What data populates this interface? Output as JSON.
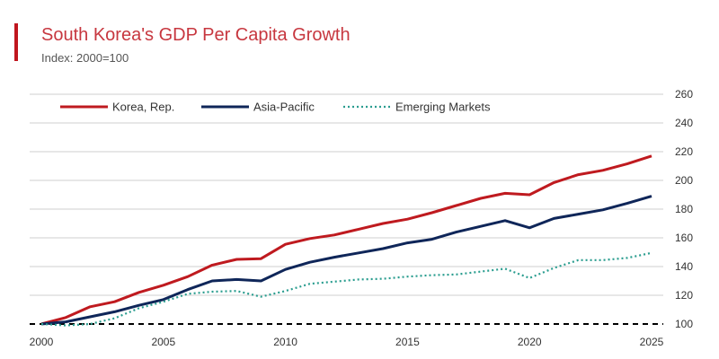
{
  "chart_data": {
    "type": "line",
    "title": "South Korea's GDP Per Capita Growth",
    "subtitle": "Index: 2000=100",
    "xlabel": "",
    "ylabel": "",
    "xlim": [
      2000,
      2025
    ],
    "ylim": [
      100,
      260
    ],
    "x_ticks": [
      "2000",
      "2005",
      "2010",
      "2015",
      "2020",
      "2025"
    ],
    "y_ticks": [
      "100",
      "120",
      "140",
      "160",
      "180",
      "200",
      "220",
      "240",
      "260"
    ],
    "grid": "horizontal",
    "y_axis_side": "right",
    "legend_position": "top-left",
    "baseline": {
      "value": 100,
      "style": "dashed",
      "color": "#000000"
    },
    "x": [
      2000,
      2001,
      2002,
      2003,
      2004,
      2005,
      2006,
      2007,
      2008,
      2009,
      2010,
      2011,
      2012,
      2013,
      2014,
      2015,
      2016,
      2017,
      2018,
      2019,
      2020,
      2021,
      2022,
      2023,
      2024,
      2025
    ],
    "series": [
      {
        "name": "Korea, Rep.",
        "color": "#bf1a1f",
        "style": "solid",
        "values": [
          100,
          104.5,
          112,
          115.5,
          122,
          127,
          133,
          141,
          145,
          145.5,
          155.5,
          159.5,
          162,
          166,
          170,
          173,
          177.5,
          182.5,
          187.5,
          191,
          190,
          198.5,
          204,
          207,
          211.5,
          217
        ]
      },
      {
        "name": "Asia-Pacific",
        "color": "#0f2659",
        "style": "solid",
        "values": [
          100,
          101.5,
          105,
          108.5,
          113,
          117,
          124,
          130,
          131,
          130,
          138,
          143,
          146.5,
          149.5,
          152.5,
          156.5,
          159,
          164,
          168,
          172,
          167,
          173.5,
          176.5,
          179.5,
          184,
          189
        ]
      },
      {
        "name": "Emerging Markets",
        "color": "#2a9d8f",
        "style": "dotted",
        "values": [
          100,
          99,
          100,
          104,
          111,
          115.5,
          121,
          122.5,
          123,
          119,
          123,
          128,
          129.5,
          131,
          131.5,
          133,
          134,
          134.5,
          136.5,
          138.5,
          132,
          139,
          144.5,
          144.5,
          146,
          149.5
        ]
      }
    ]
  }
}
